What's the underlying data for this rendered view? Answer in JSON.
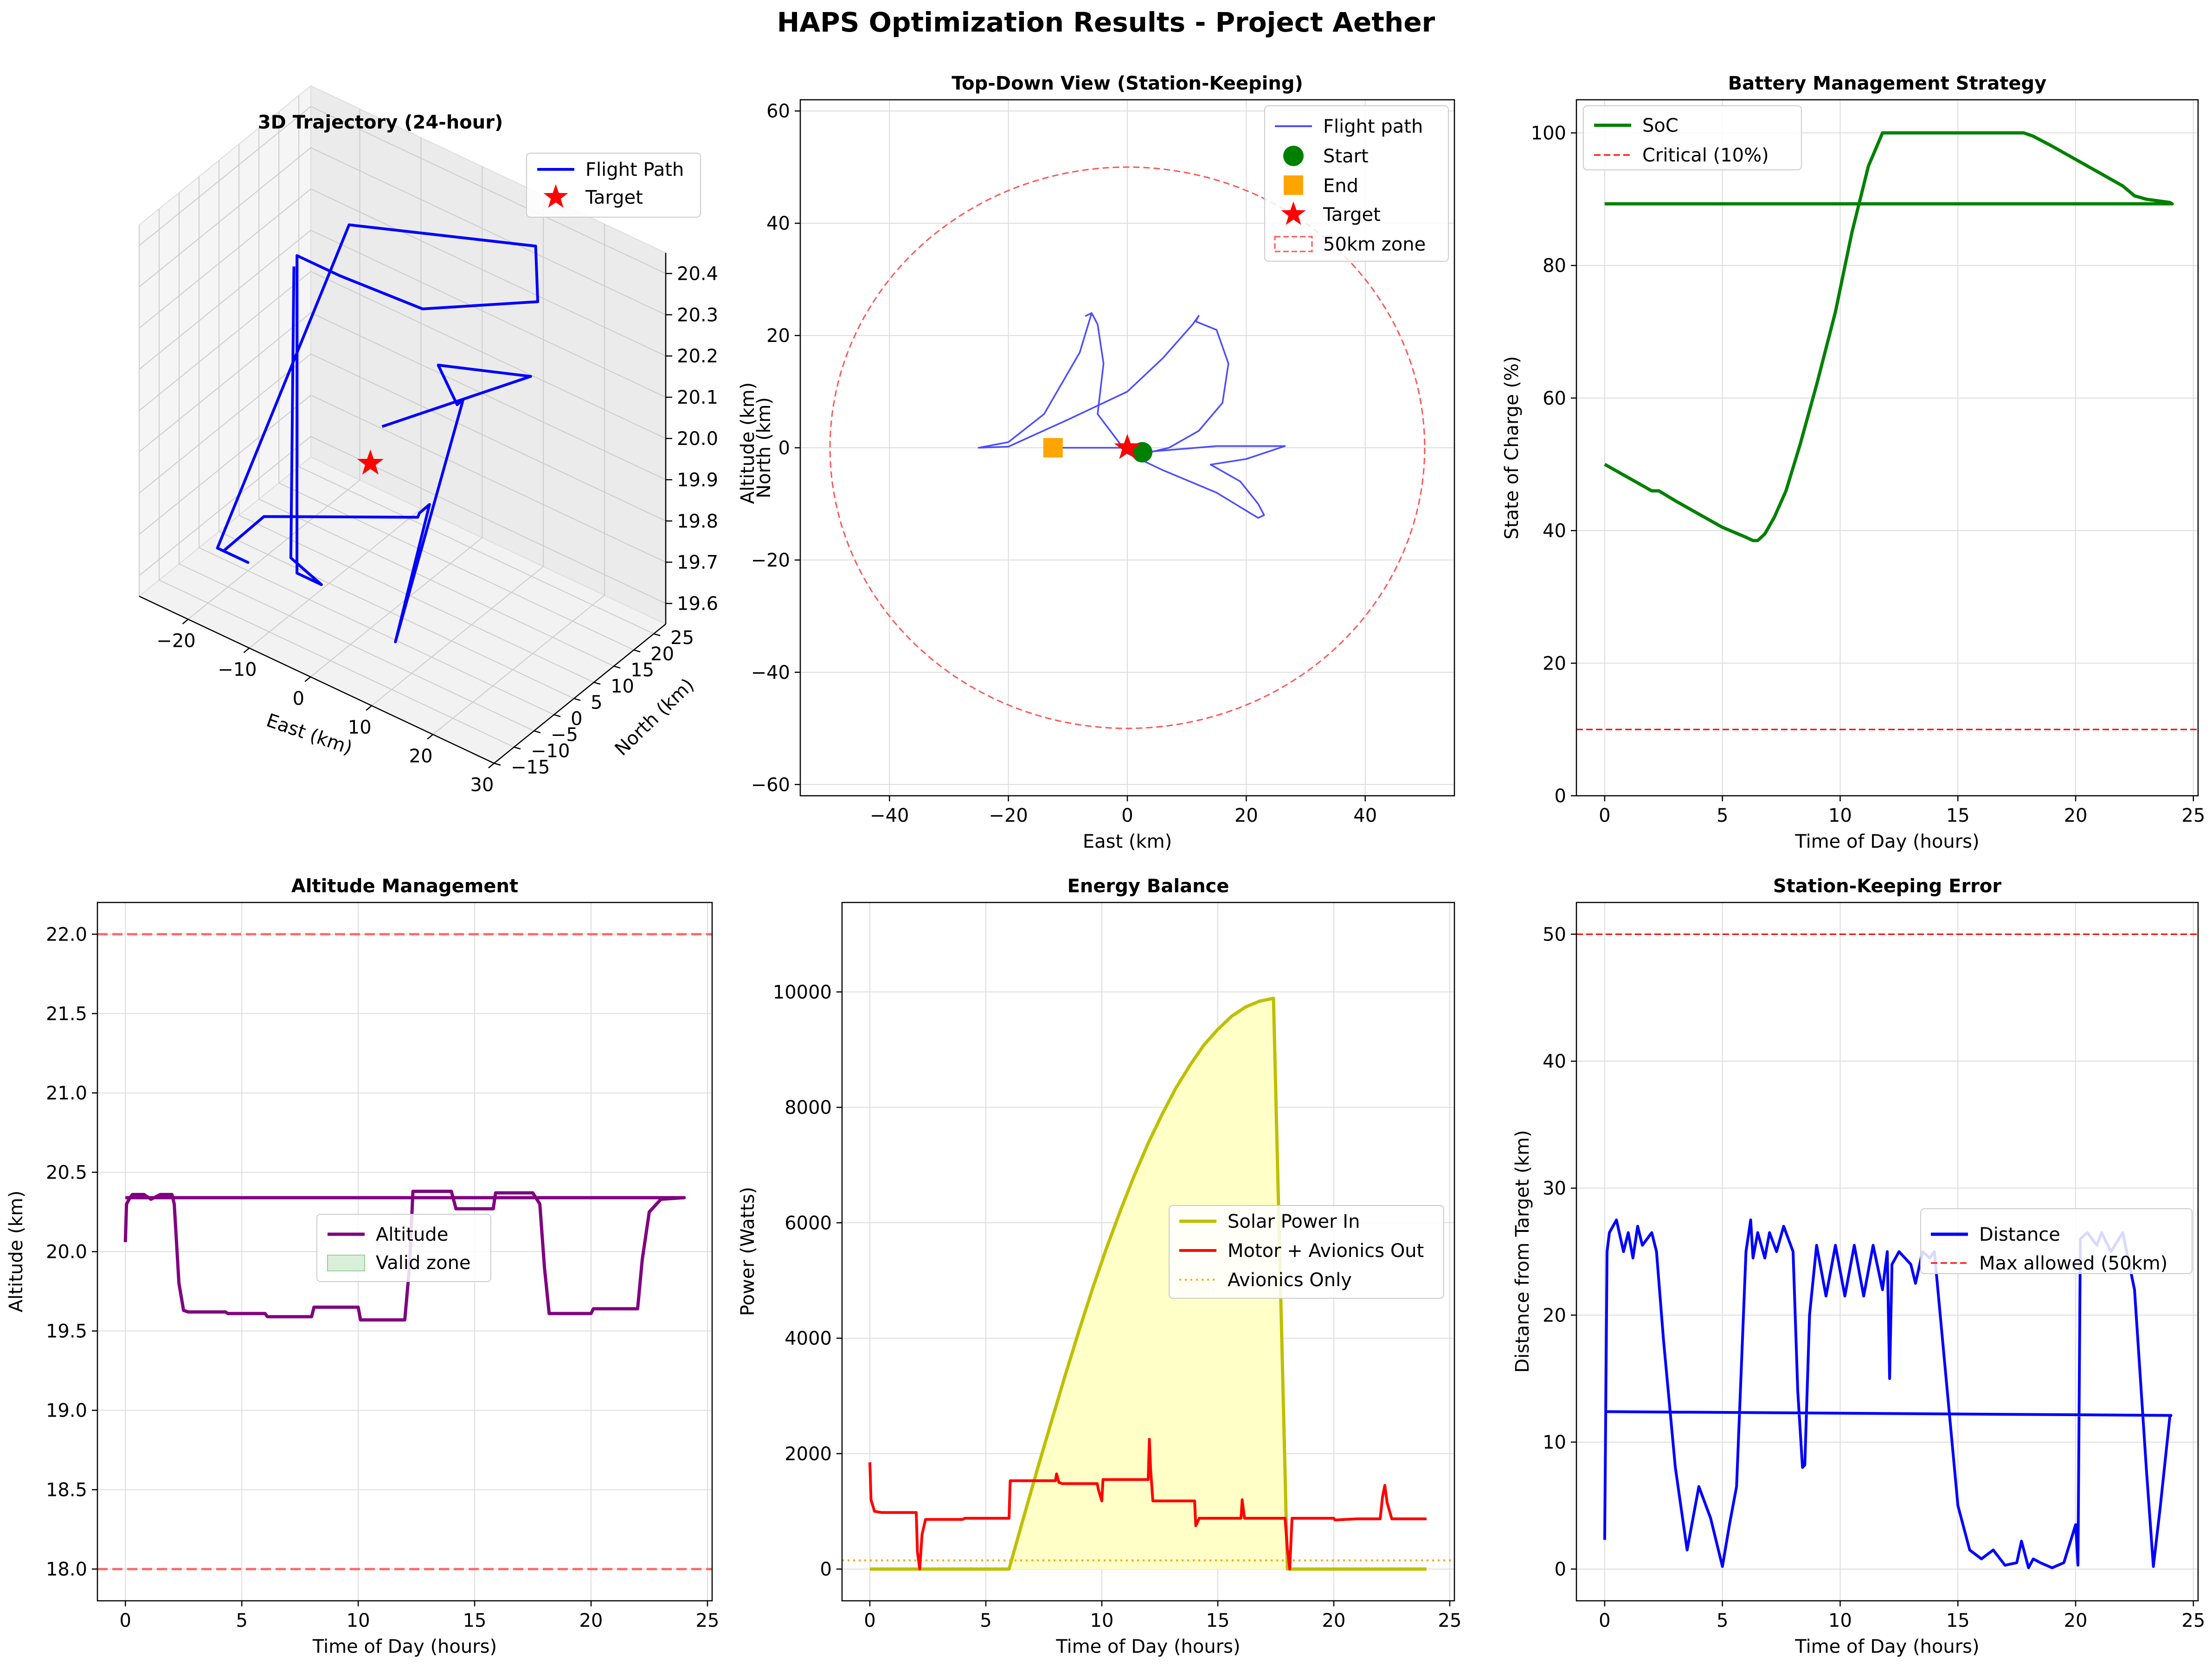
{
  "figure": {
    "title": "HAPS Optimization Results - Project Aether",
    "colors": {
      "flight": "#0000ff",
      "flight_light": "#4c4cff",
      "target": "#ff0000",
      "start": "#008000",
      "end": "#ffa500",
      "soc": "#008000",
      "critical": "#ff0000",
      "altitude": "#800080",
      "limit": "#ff6b6b",
      "solar": "#bfbf00",
      "solar_fill": "#ffffc8",
      "motor": "#ff0000",
      "avionics": "#ffa500",
      "distance": "#0000ff",
      "grid": "#dddddd"
    }
  },
  "chart_data": [
    {
      "id": "trajectory3d",
      "type": "line3d",
      "title": "3D Trajectory (24-hour)",
      "xlabel": "East (km)",
      "ylabel": "North (km)",
      "zlabel": "Altitude (km)",
      "xlim": [
        -28,
        30
      ],
      "ylim": [
        -15,
        28
      ],
      "zlim": [
        19.55,
        20.45
      ],
      "xticks": [
        -20,
        -10,
        0,
        10,
        20,
        30
      ],
      "yticks": [
        -15,
        -10,
        -5,
        0,
        5,
        10,
        15,
        20,
        25
      ],
      "zticks": [
        19.6,
        19.7,
        19.8,
        19.9,
        20.0,
        20.1,
        20.2,
        20.3,
        20.4
      ],
      "legend": [
        "Flight Path",
        "Target"
      ],
      "legend_position": "top-right",
      "target": {
        "x": 0,
        "y": 0,
        "z": 19.95
      },
      "path_points": [
        [
          2.3,
          -0.6,
          20.06
        ],
        [
          26,
          0.3,
          20.34
        ],
        [
          15,
          -6,
          20.34
        ],
        [
          22,
          -12,
          20.34
        ],
        [
          23,
          -12,
          20.36
        ],
        [
          8,
          -6,
          19.62
        ],
        [
          -6,
          24,
          19.62
        ],
        [
          -7,
          23,
          19.6
        ],
        [
          -4,
          18,
          19.65
        ],
        [
          -20,
          4,
          19.65
        ],
        [
          -24,
          0,
          19.57
        ],
        [
          -20,
          0,
          19.57
        ],
        [
          -25,
          0,
          19.57
        ],
        [
          -10,
          10,
          20.38
        ],
        [
          12,
          23,
          20.38
        ],
        [
          13,
          22,
          20.26
        ],
        [
          2,
          10,
          20.26
        ],
        [
          -5,
          0,
          20.37
        ],
        [
          -12,
          0,
          20.37
        ],
        [
          -12,
          0,
          19.6
        ],
        [
          -8,
          0,
          19.6
        ],
        [
          -13,
          0,
          19.63
        ],
        [
          -12.5,
          0,
          20.34
        ]
      ]
    },
    {
      "id": "topdown",
      "type": "line",
      "title": "Top-Down View (Station-Keeping)",
      "xlabel": "East (km)",
      "ylabel": "North (km)",
      "xlim": [
        -55,
        55
      ],
      "ylim": [
        -62,
        62
      ],
      "xticks": [
        -40,
        -20,
        0,
        20,
        40
      ],
      "yticks": [
        -60,
        -40,
        -20,
        0,
        20,
        40,
        60
      ],
      "legend": [
        "Flight path",
        "Start",
        "End",
        "Target",
        "50km zone"
      ],
      "legend_position": "top-right",
      "zone_radius": 50,
      "start": [
        2.5,
        -0.8
      ],
      "end": [
        -12.5,
        0
      ],
      "target": [
        0,
        0
      ],
      "path_points": [
        [
          2.5,
          -0.8
        ],
        [
          15,
          0.3
        ],
        [
          26.5,
          0.3
        ],
        [
          20,
          -2
        ],
        [
          14,
          -3
        ],
        [
          19,
          -6
        ],
        [
          22,
          -10
        ],
        [
          23,
          -12
        ],
        [
          22,
          -12.5
        ],
        [
          15,
          -8
        ],
        [
          6,
          -4
        ],
        [
          0,
          -1
        ],
        [
          -5,
          6
        ],
        [
          -4,
          15
        ],
        [
          -5,
          22
        ],
        [
          -6,
          24
        ],
        [
          -7,
          23.5
        ],
        [
          -6,
          24
        ],
        [
          -8,
          17
        ],
        [
          -14,
          6
        ],
        [
          -20,
          1
        ],
        [
          -25,
          0
        ],
        [
          -20,
          0.2
        ],
        [
          -10,
          5
        ],
        [
          0,
          10
        ],
        [
          6,
          16
        ],
        [
          11,
          22
        ],
        [
          12,
          23.5
        ],
        [
          11.5,
          22.5
        ],
        [
          15,
          21
        ],
        [
          17,
          15
        ],
        [
          16,
          8
        ],
        [
          12,
          3
        ],
        [
          7,
          0
        ],
        [
          3,
          -1
        ],
        [
          0,
          0
        ],
        [
          -5,
          0
        ],
        [
          -10,
          0
        ],
        [
          -12.5,
          0
        ]
      ]
    },
    {
      "id": "battery",
      "type": "line",
      "title": "Battery Management Strategy",
      "xlabel": "Time of Day (hours)",
      "ylabel": "State of Charge (%)",
      "xlim": [
        -1.2,
        25.2
      ],
      "ylim": [
        0,
        105
      ],
      "xticks": [
        0,
        5,
        10,
        15,
        20,
        25
      ],
      "yticks": [
        0,
        20,
        40,
        60,
        80,
        100
      ],
      "legend": [
        "SoC",
        "Critical (10%)"
      ],
      "legend_position": "top-left",
      "critical": 10,
      "series": [
        {
          "name": "SoC",
          "x": [
            0,
            1,
            2,
            2.3,
            3,
            4,
            5,
            6,
            6.3,
            6.5,
            6.8,
            7.2,
            7.7,
            8.3,
            9,
            9.8,
            10.5,
            11.2,
            11.8,
            13,
            15,
            17,
            17.8,
            18.2,
            19,
            20,
            21,
            22,
            22.5,
            23,
            24,
            24.1,
            0
          ],
          "y": [
            50,
            48,
            46,
            46,
            44.5,
            42.5,
            40.5,
            39,
            38.5,
            38.5,
            39.5,
            42,
            46,
            53,
            62,
            73,
            85,
            95,
            100,
            100,
            100,
            100,
            100,
            99.5,
            98,
            96,
            94,
            92,
            90.5,
            90,
            89.5,
            89.3,
            89.3
          ]
        }
      ]
    },
    {
      "id": "altitude",
      "type": "line",
      "title": "Altitude Management",
      "xlabel": "Time of Day (hours)",
      "ylabel": "Altitude (km)",
      "xlim": [
        -1.2,
        25.2
      ],
      "ylim": [
        17.8,
        22.2
      ],
      "xticks": [
        0,
        5,
        10,
        15,
        20,
        25
      ],
      "yticks": [
        18.0,
        18.5,
        19.0,
        19.5,
        20.0,
        20.5,
        21.0,
        21.5,
        22.0
      ],
      "legend": [
        "Altitude",
        "Valid zone"
      ],
      "legend_position": "center-right",
      "limits": [
        18.0,
        22.0
      ],
      "series": [
        {
          "name": "Altitude",
          "x": [
            0,
            0.05,
            0.2,
            0.3,
            0.8,
            1.1,
            1.5,
            2.0,
            2.1,
            2.3,
            2.5,
            2.7,
            3.5,
            4.3,
            4.4,
            5.0,
            6.0,
            6.1,
            7.5,
            8.0,
            8.1,
            9.0,
            10.0,
            10.1,
            11.0,
            12.0,
            12.2,
            12.35,
            12.5,
            13.5,
            14.0,
            14.2,
            15.0,
            15.8,
            15.9,
            16.5,
            17.5,
            17.8,
            18.0,
            18.2,
            19.0,
            20.0,
            20.1,
            21.0,
            22.0,
            22.2,
            22.5,
            23.0,
            24.0,
            0
          ],
          "y": [
            20.06,
            20.3,
            20.34,
            20.36,
            20.36,
            20.33,
            20.36,
            20.36,
            20.3,
            19.8,
            19.63,
            19.62,
            19.62,
            19.62,
            19.61,
            19.61,
            19.61,
            19.59,
            19.59,
            19.59,
            19.65,
            19.65,
            19.65,
            19.57,
            19.57,
            19.57,
            19.9,
            20.38,
            20.38,
            20.38,
            20.38,
            20.27,
            20.27,
            20.27,
            20.37,
            20.37,
            20.37,
            20.3,
            19.9,
            19.61,
            19.61,
            19.61,
            19.64,
            19.64,
            19.64,
            19.95,
            20.25,
            20.33,
            20.34,
            20.34
          ]
        }
      ]
    },
    {
      "id": "energy",
      "type": "area",
      "title": "Energy Balance",
      "xlabel": "Time of Day (hours)",
      "ylabel": "Power (Watts)",
      "xlim": [
        -1.2,
        25.2
      ],
      "ylim": [
        -550,
        11550
      ],
      "xticks": [
        0,
        5,
        10,
        15,
        20,
        25
      ],
      "yticks": [
        0,
        2000,
        4000,
        6000,
        8000,
        10000
      ],
      "legend": [
        "Solar Power In",
        "Motor + Avionics Out",
        "Avionics Only"
      ],
      "legend_position": "center-right",
      "avionics_only": 150,
      "series": [
        {
          "name": "Solar Power In",
          "x": [
            0,
            6,
            6.6,
            7.2,
            7.8,
            8.4,
            9,
            9.6,
            10.2,
            10.8,
            11.4,
            12,
            12.6,
            13.2,
            13.8,
            14.4,
            15,
            15.6,
            16.2,
            16.8,
            17.4,
            18,
            24
          ],
          "y": [
            0,
            0,
            855,
            1700,
            2520,
            3330,
            4110,
            4860,
            5560,
            6210,
            6820,
            7380,
            7880,
            8340,
            8730,
            9080,
            9350,
            9580,
            9740,
            9840,
            9890,
            0,
            0
          ]
        },
        {
          "name": "Motor + Avionics Out",
          "x": [
            0,
            0.05,
            0.2,
            0.5,
            1.0,
            2.0,
            2.05,
            2.15,
            2.25,
            2.4,
            2.6,
            4.0,
            4.1,
            6.0,
            6.05,
            8.0,
            8.05,
            8.15,
            8.3,
            9.8,
            9.85,
            10.0,
            10.05,
            12.0,
            12.05,
            12.1,
            12.2,
            14.0,
            14.05,
            14.2,
            16.0,
            16.05,
            16.15,
            17.9,
            18.0,
            18.1,
            18.2,
            19.0,
            20.0,
            20.05,
            21.0,
            22.0,
            22.1,
            22.2,
            22.3,
            22.5,
            24.0
          ],
          "y": [
            1850,
            1200,
            1000,
            980,
            980,
            980,
            300,
            0,
            600,
            860,
            860,
            860,
            880,
            880,
            1530,
            1530,
            1650,
            1500,
            1480,
            1480,
            1380,
            1180,
            1550,
            1550,
            2250,
            1750,
            1180,
            1180,
            750,
            880,
            880,
            1200,
            880,
            880,
            350,
            0,
            880,
            880,
            880,
            850,
            870,
            870,
            1250,
            1450,
            1150,
            870,
            870
          ]
        }
      ]
    },
    {
      "id": "station",
      "type": "line",
      "title": "Station-Keeping Error",
      "xlabel": "Time of Day (hours)",
      "ylabel": "Distance from Target (km)",
      "xlim": [
        -1.2,
        25.2
      ],
      "ylim": [
        -2.5,
        52.5
      ],
      "xticks": [
        0,
        5,
        10,
        15,
        20,
        25
      ],
      "yticks": [
        0,
        10,
        20,
        30,
        40,
        50
      ],
      "legend": [
        "Distance",
        "Max allowed (50km)"
      ],
      "legend_position": "center-right",
      "max_allowed": 50,
      "series": [
        {
          "name": "Distance",
          "x": [
            0,
            0.1,
            0.2,
            0.5,
            0.8,
            1.0,
            1.2,
            1.4,
            1.6,
            1.8,
            2.0,
            2.2,
            2.5,
            3.0,
            3.5,
            4.0,
            4.5,
            5.0,
            5.3,
            5.6,
            6.0,
            6.2,
            6.3,
            6.5,
            6.8,
            7.0,
            7.3,
            7.6,
            8.0,
            8.2,
            8.4,
            8.5,
            8.7,
            9.0,
            9.4,
            9.8,
            10.2,
            10.6,
            11.0,
            11.4,
            11.8,
            12.0,
            12.1,
            12.2,
            12.5,
            13.0,
            13.2,
            13.5,
            13.8,
            14.0,
            14.5,
            15.0,
            15.5,
            16.0,
            16.5,
            17.0,
            17.5,
            17.7,
            18.0,
            18.2,
            18.5,
            19.0,
            19.5,
            20.0,
            20.1,
            20.2,
            20.5,
            20.9,
            21.1,
            21.5,
            22.0,
            22.5,
            23.0,
            23.3,
            23.6,
            24.0,
            24.05,
            0
          ],
          "y": [
            2.3,
            25,
            26.5,
            27.5,
            25,
            26.5,
            24.5,
            27,
            25.5,
            26,
            26.5,
            25,
            18,
            8,
            1.5,
            6.5,
            4,
            0.2,
            3.5,
            6.5,
            25,
            27.5,
            24.5,
            26.5,
            24.5,
            26.5,
            25,
            27,
            25,
            14,
            8,
            8.2,
            20,
            25.5,
            21.5,
            25.5,
            21.5,
            25.5,
            21.5,
            25.5,
            22,
            25,
            15,
            24,
            25,
            24,
            22.5,
            25,
            24.5,
            25,
            15,
            5,
            1.5,
            0.8,
            1.5,
            0.3,
            0.5,
            2.2,
            0.1,
            0.8,
            0.5,
            0.1,
            0.5,
            3.5,
            0.3,
            26,
            26.5,
            25.5,
            26.5,
            25,
            26.5,
            22,
            8,
            0.2,
            5,
            12,
            12.1,
            12.4
          ]
        }
      ]
    }
  ]
}
